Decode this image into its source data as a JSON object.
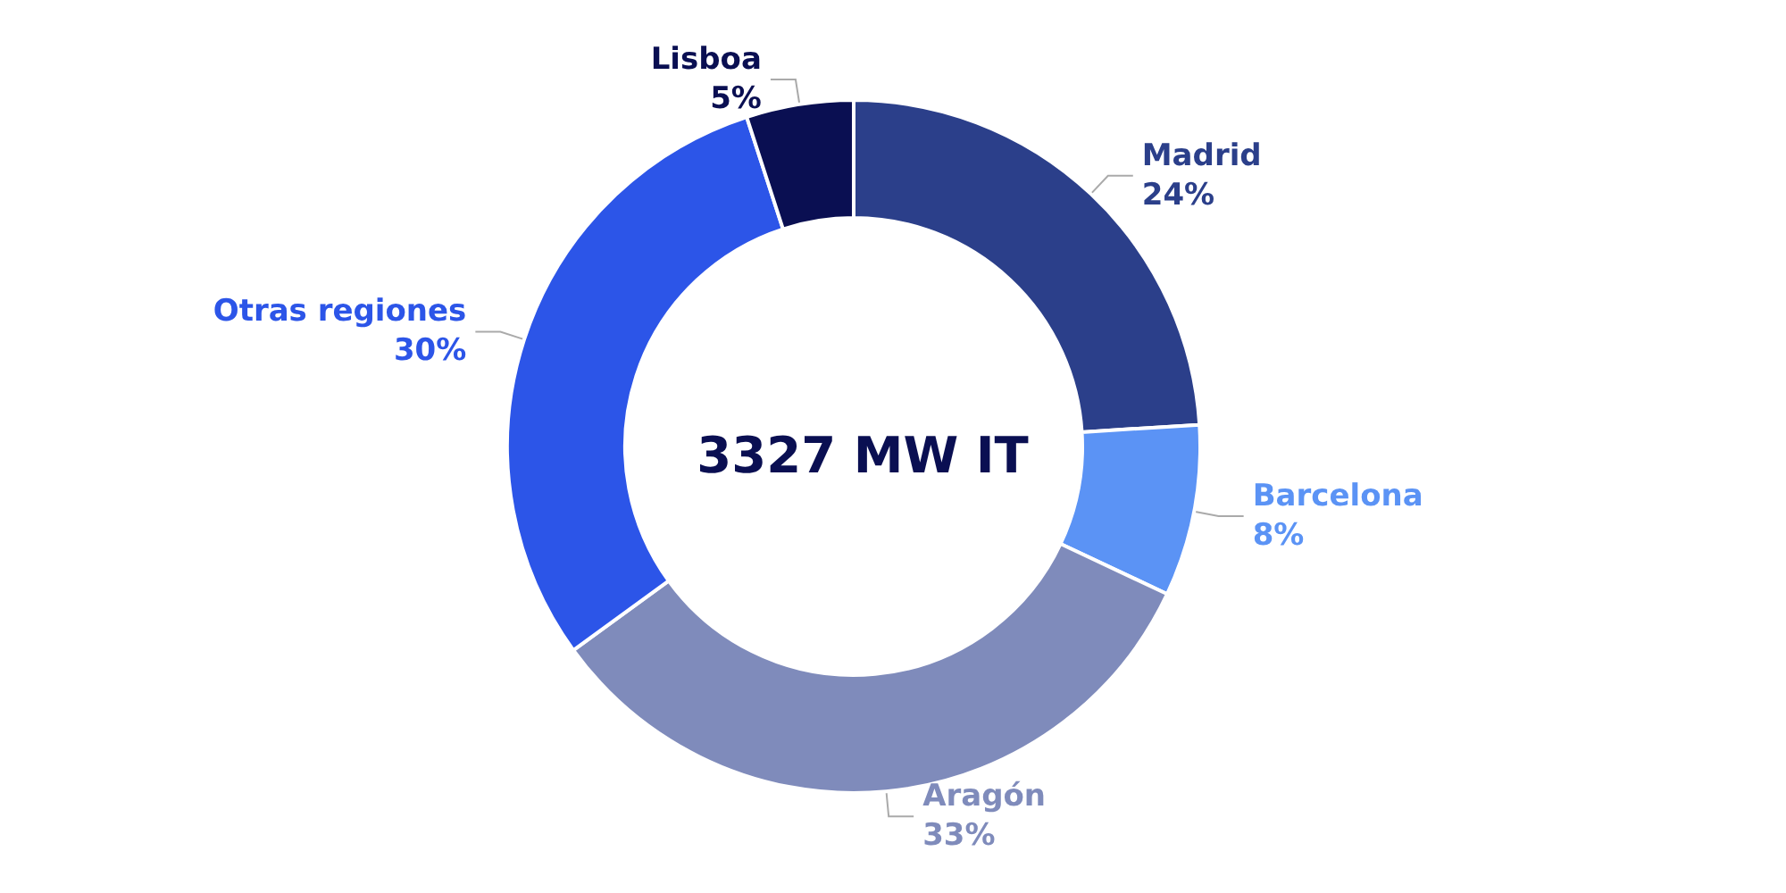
{
  "chart_data": {
    "type": "donut",
    "title": "3327 MW IT",
    "categories": [
      "Madrid",
      "Barcelona",
      "Aragón",
      "Otras regiones",
      "Lisboa"
    ],
    "values": [
      24,
      8,
      33,
      30,
      5
    ],
    "value_labels": [
      "24%",
      "8%",
      "33%",
      "30%",
      "5%"
    ],
    "colors": [
      "#2b3f8a",
      "#5b93f5",
      "#7f8bbb",
      "#2c55e8",
      "#0a0f52"
    ],
    "legend": false
  }
}
